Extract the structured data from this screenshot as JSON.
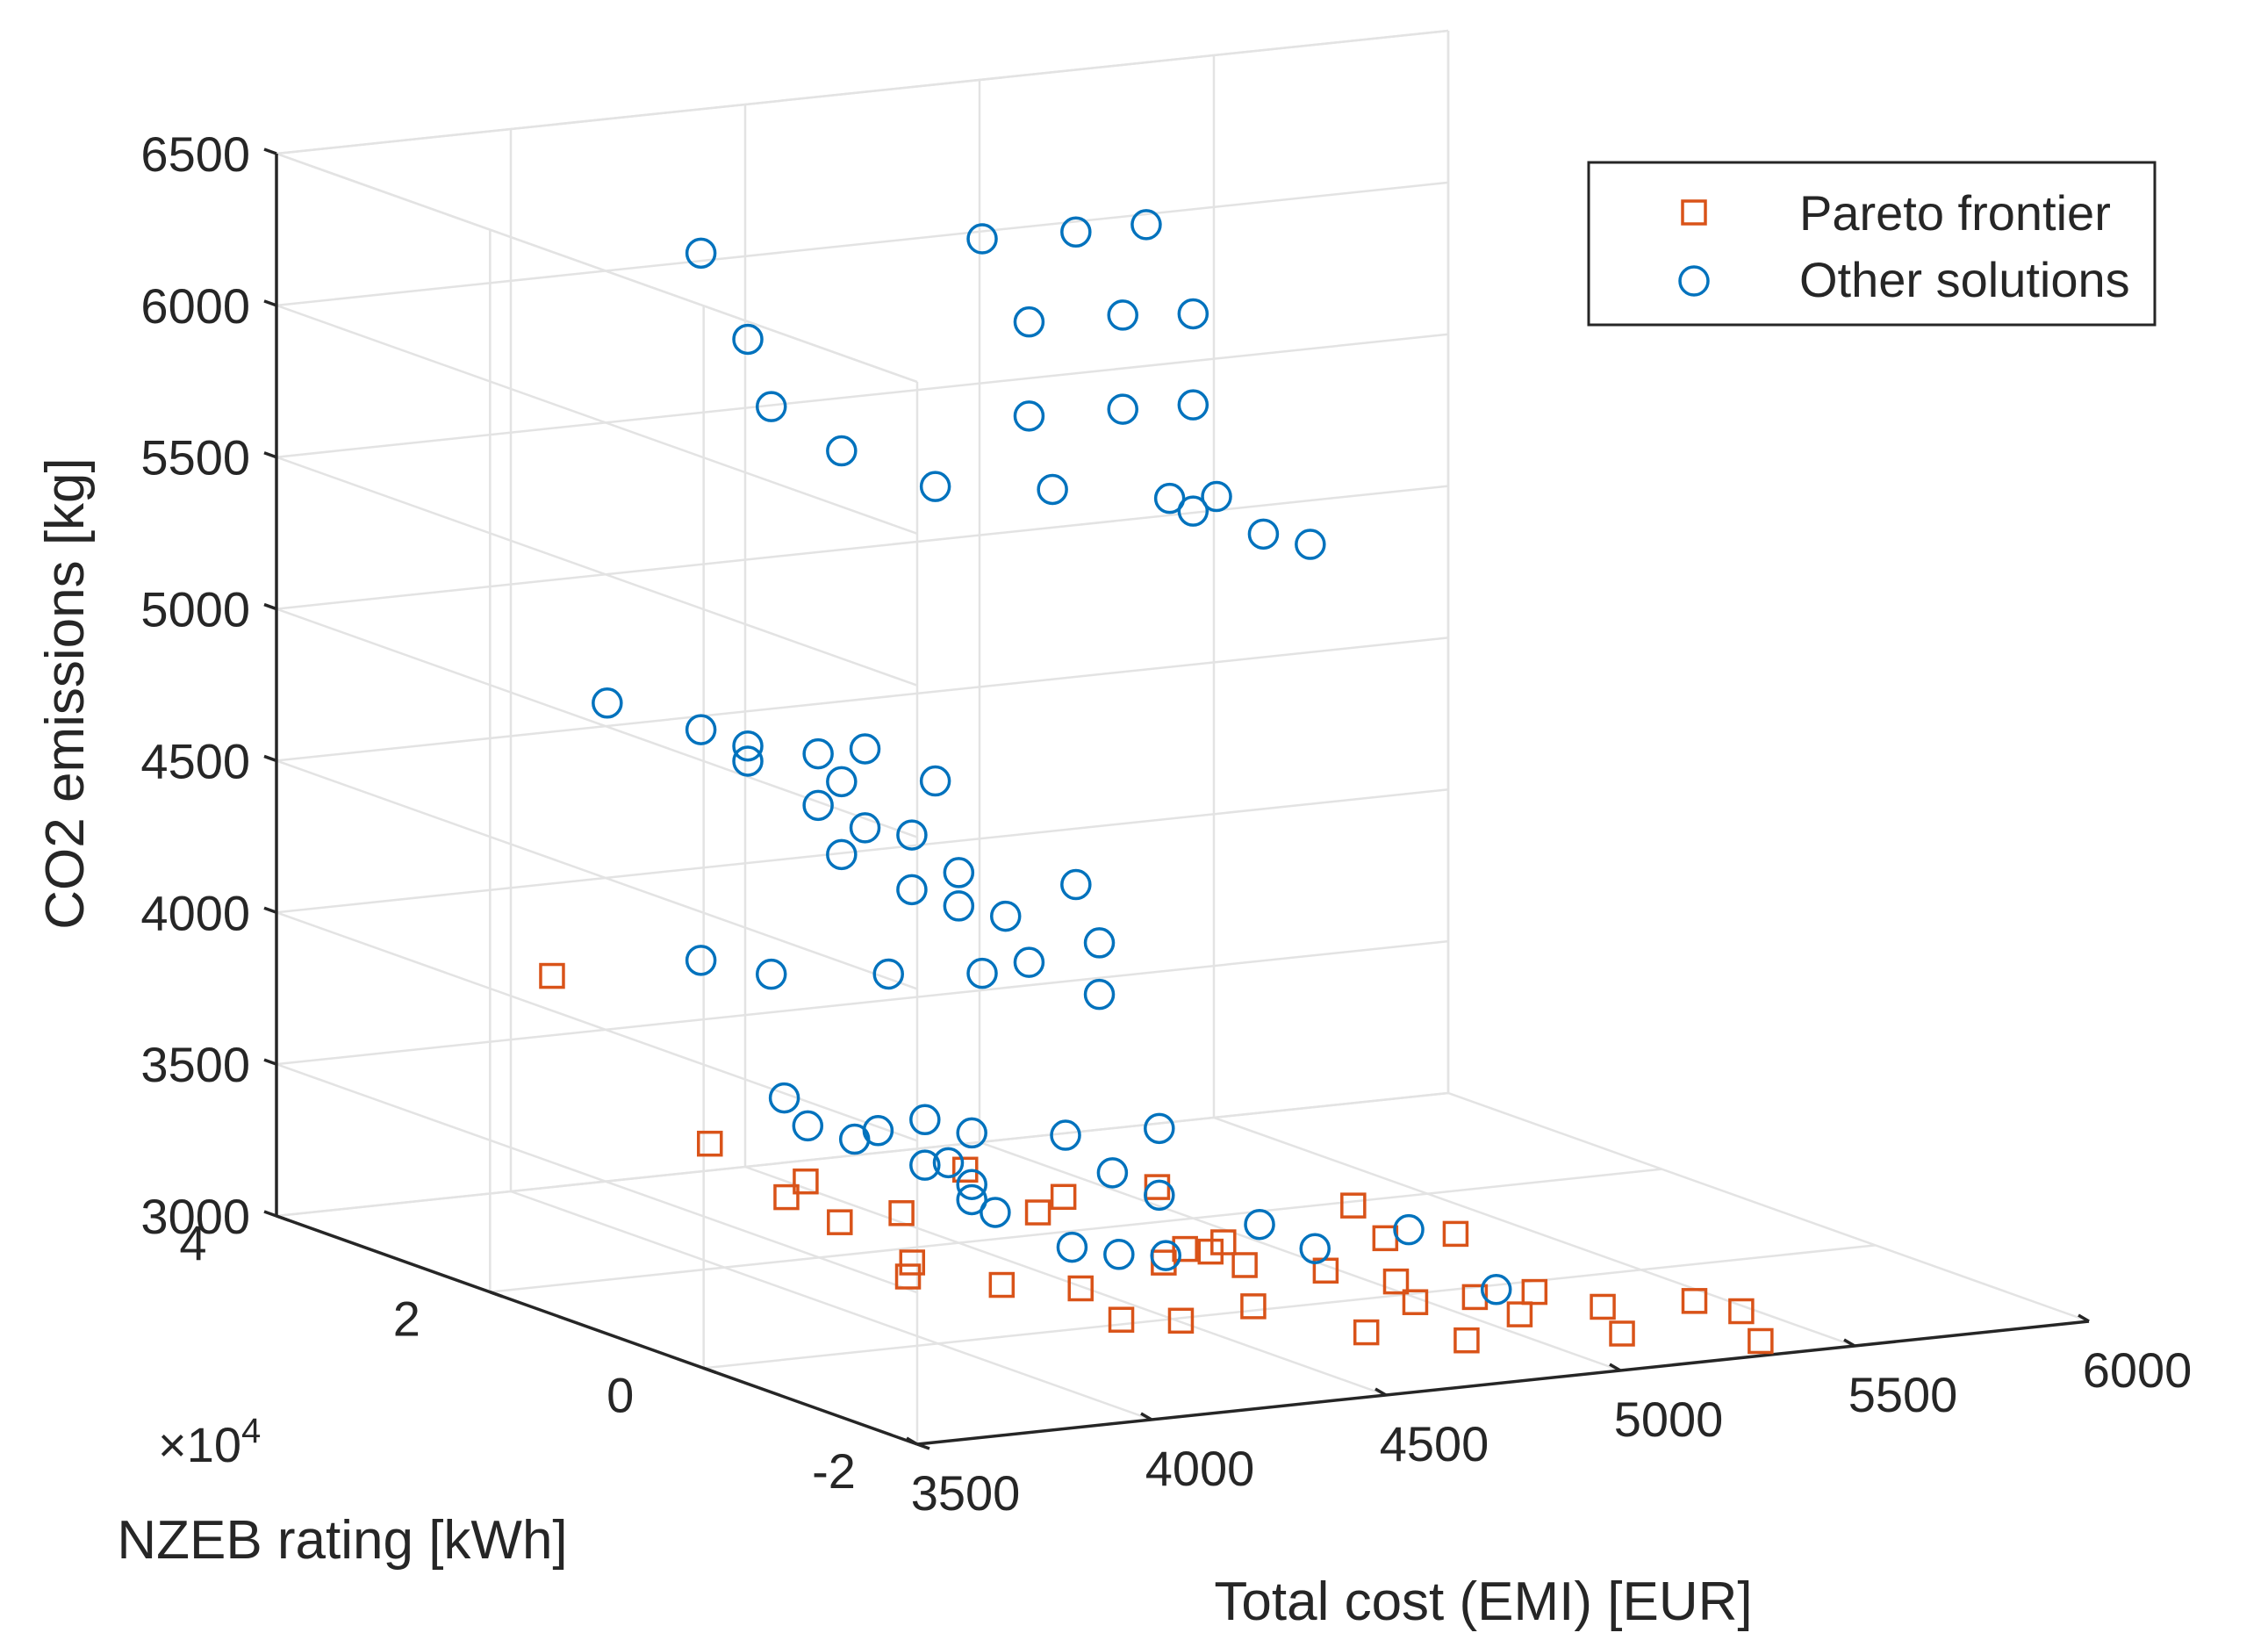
{
  "chart_data": {
    "type": "scatter3d",
    "xlabel": "Total cost (EMI) [EUR]",
    "ylabel": "NZEB rating [kWh]",
    "zlabel": "CO2 emissions [kg]",
    "y_exponent_label": "×10",
    "y_exponent_power": "4",
    "xlim": [
      3500,
      6000
    ],
    "ylim": [
      -2,
      4
    ],
    "zlim": [
      3000,
      6500
    ],
    "x_ticks": [
      "3500",
      "4000",
      "4500",
      "5000",
      "5500",
      "6000"
    ],
    "y_ticks": [
      "-2",
      "0",
      "2",
      "4"
    ],
    "z_ticks": [
      "3000",
      "3500",
      "4000",
      "4500",
      "5000",
      "5500",
      "6000",
      "6500"
    ],
    "grid": true,
    "legend_position": "top-right",
    "series": [
      {
        "name": "Pareto frontier",
        "marker": "square",
        "color": "#d95319",
        "points": [
          [
            3450,
            1.2,
            4150
          ],
          [
            3650,
            0.6,
            3640
          ],
          [
            3900,
            0.8,
            3450
          ],
          [
            3950,
            0.7,
            3320
          ],
          [
            3950,
            1.2,
            3340
          ],
          [
            4050,
            0.5,
            3150
          ],
          [
            4150,
            1.0,
            3280
          ],
          [
            4350,
            0.6,
            3300
          ],
          [
            4150,
            0.9,
            3130
          ],
          [
            4250,
            0.5,
            3090
          ],
          [
            4450,
            0.8,
            3310
          ],
          [
            4650,
            0.8,
            3310
          ],
          [
            4400,
            1.5,
            3320
          ],
          [
            4300,
            -0.4,
            3080
          ],
          [
            4550,
            0.3,
            3140
          ],
          [
            4550,
            0.1,
            3210
          ],
          [
            4450,
            -0.3,
            3040
          ],
          [
            4650,
            -0.1,
            3030
          ],
          [
            4700,
            0.4,
            3170
          ],
          [
            4700,
            0.2,
            3120
          ],
          [
            4850,
            0.1,
            3090
          ],
          [
            5000,
            0.1,
            3030
          ],
          [
            5100,
            -0.2,
            3000
          ],
          [
            5150,
            -0.4,
            2960
          ],
          [
            4950,
            -0.3,
            3020
          ],
          [
            4800,
            -0.5,
            2970
          ],
          [
            4900,
            -1.0,
            2990
          ],
          [
            5000,
            0.5,
            3230
          ],
          [
            5150,
            0.2,
            3150
          ],
          [
            5250,
            -0.1,
            2980
          ],
          [
            5350,
            -0.3,
            2940
          ],
          [
            5300,
            -0.7,
            2910
          ],
          [
            5500,
            -0.5,
            2960
          ],
          [
            5600,
            -0.5,
            2910
          ],
          [
            5550,
            -0.9,
            2870
          ],
          [
            4650,
            0.3,
            3160
          ],
          [
            4350,
            0.2,
            3100
          ],
          [
            5000,
            0.2,
            3160
          ]
        ]
      },
      {
        "name": "Other solutions",
        "marker": "circle",
        "color": "#0072bd",
        "points": [
          [
            3950,
            2.0,
            6350
          ],
          [
            4550,
            2.0,
            6300
          ],
          [
            4750,
            2.0,
            6290
          ],
          [
            4900,
            2.0,
            6290
          ],
          [
            4050,
            2.0,
            6050
          ],
          [
            4650,
            2.0,
            6010
          ],
          [
            4850,
            2.0,
            6000
          ],
          [
            5000,
            2.0,
            5980
          ],
          [
            4100,
            2.0,
            5820
          ],
          [
            4650,
            2.0,
            5700
          ],
          [
            4850,
            2.0,
            5690
          ],
          [
            5000,
            2.0,
            5680
          ],
          [
            4250,
            2.0,
            5650
          ],
          [
            4450,
            2.0,
            5500
          ],
          [
            4700,
            2.0,
            5450
          ],
          [
            4950,
            2.0,
            5380
          ],
          [
            5050,
            2.0,
            5370
          ],
          [
            5000,
            2.0,
            5330
          ],
          [
            5150,
            2.0,
            5230
          ],
          [
            5250,
            2.0,
            5180
          ],
          [
            3750,
            2.0,
            4900
          ],
          [
            3950,
            2.0,
            4780
          ],
          [
            4050,
            2.0,
            4710
          ],
          [
            4050,
            2.0,
            4660
          ],
          [
            4200,
            2.0,
            4660
          ],
          [
            4300,
            2.0,
            4660
          ],
          [
            4250,
            2.0,
            4560
          ],
          [
            4200,
            2.0,
            4490
          ],
          [
            4450,
            2.0,
            4530
          ],
          [
            4300,
            2.0,
            4400
          ],
          [
            4400,
            2.0,
            4360
          ],
          [
            4250,
            2.0,
            4320
          ],
          [
            4500,
            2.0,
            4220
          ],
          [
            4400,
            2.0,
            4180
          ],
          [
            4500,
            2.0,
            4110
          ],
          [
            4600,
            2.0,
            4060
          ],
          [
            4750,
            2.0,
            4140
          ],
          [
            4800,
            2.0,
            3940
          ],
          [
            4800,
            2.0,
            3770
          ],
          [
            3950,
            2.0,
            4020
          ],
          [
            4100,
            2.0,
            3950
          ],
          [
            4350,
            2.0,
            3910
          ],
          [
            4550,
            2.0,
            3880
          ],
          [
            4650,
            2.0,
            3900
          ],
          [
            3900,
            1.0,
            3700
          ],
          [
            3950,
            1.0,
            3600
          ],
          [
            4100,
            1.0,
            3560
          ],
          [
            4200,
            1.0,
            3580
          ],
          [
            4300,
            1.0,
            3520
          ],
          [
            4500,
            1.0,
            3480
          ],
          [
            4700,
            1.0,
            3470
          ],
          [
            4050,
            1.0,
            3540
          ],
          [
            4200,
            1.0,
            3430
          ],
          [
            4250,
            1.0,
            3430
          ],
          [
            4300,
            1.0,
            3300
          ],
          [
            4350,
            1.0,
            3250
          ],
          [
            4600,
            1.0,
            3340
          ],
          [
            4700,
            1.0,
            3250
          ],
          [
            4400,
            0.5,
            3190
          ],
          [
            4500,
            0.5,
            3150
          ],
          [
            4600,
            0.5,
            3130
          ],
          [
            4800,
            0.5,
            3200
          ],
          [
            4850,
            0.2,
            3150
          ],
          [
            5050,
            0.2,
            3180
          ],
          [
            5100,
            -0.4,
            3050
          ],
          [
            4300,
            1.0,
            3350
          ]
        ]
      }
    ]
  }
}
